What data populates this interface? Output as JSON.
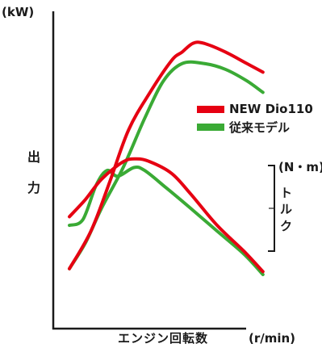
{
  "chart_data": {
    "type": "line",
    "title": "",
    "y_axis_left": {
      "unit": "(kW)",
      "label": "出力"
    },
    "y_axis_right": {
      "unit": "(N・m)",
      "label": "トルク"
    },
    "x_axis": {
      "label": "エンジン回転数",
      "unit": "(r/min)"
    },
    "grid": false,
    "legend_position": "right",
    "legend": [
      {
        "name": "NEW Dio110",
        "color": "#e60012"
      },
      {
        "name": "従来モデル",
        "color": "#3aaa35"
      }
    ],
    "series": [
      {
        "name": "NEW Dio110",
        "quantity": "出力",
        "color": "#e60012",
        "points": [
          [
            0,
            0.21
          ],
          [
            0.08,
            0.34
          ],
          [
            0.15,
            0.51
          ],
          [
            0.22,
            0.69
          ],
          [
            0.3,
            0.82
          ],
          [
            0.38,
            0.93
          ],
          [
            0.42,
            0.96
          ],
          [
            0.46,
            0.99
          ],
          [
            0.5,
            0.99
          ],
          [
            0.58,
            0.96
          ],
          [
            0.66,
            0.92
          ],
          [
            0.72,
            0.89
          ]
        ]
      },
      {
        "name": "従来モデル",
        "quantity": "出力",
        "color": "#3aaa35",
        "points": [
          [
            0,
            0.21
          ],
          [
            0.06,
            0.3
          ],
          [
            0.12,
            0.42
          ],
          [
            0.2,
            0.56
          ],
          [
            0.28,
            0.73
          ],
          [
            0.35,
            0.86
          ],
          [
            0.42,
            0.92
          ],
          [
            0.5,
            0.92
          ],
          [
            0.58,
            0.9
          ],
          [
            0.66,
            0.86
          ],
          [
            0.72,
            0.82
          ]
        ]
      },
      {
        "name": "NEW Dio110",
        "quantity": "トルク",
        "color": "#e60012",
        "points": [
          [
            0,
            0.39
          ],
          [
            0.06,
            0.45
          ],
          [
            0.12,
            0.52
          ],
          [
            0.2,
            0.58
          ],
          [
            0.25,
            0.59
          ],
          [
            0.3,
            0.58
          ],
          [
            0.38,
            0.54
          ],
          [
            0.45,
            0.47
          ],
          [
            0.55,
            0.36
          ],
          [
            0.65,
            0.27
          ],
          [
            0.72,
            0.2
          ]
        ]
      },
      {
        "name": "従来モデル",
        "quantity": "トルク",
        "color": "#3aaa35",
        "points": [
          [
            0,
            0.36
          ],
          [
            0.05,
            0.38
          ],
          [
            0.1,
            0.5
          ],
          [
            0.14,
            0.55
          ],
          [
            0.18,
            0.53
          ],
          [
            0.24,
            0.56
          ],
          [
            0.28,
            0.55
          ],
          [
            0.36,
            0.49
          ],
          [
            0.45,
            0.42
          ],
          [
            0.55,
            0.34
          ],
          [
            0.65,
            0.26
          ],
          [
            0.72,
            0.19
          ]
        ]
      }
    ]
  }
}
